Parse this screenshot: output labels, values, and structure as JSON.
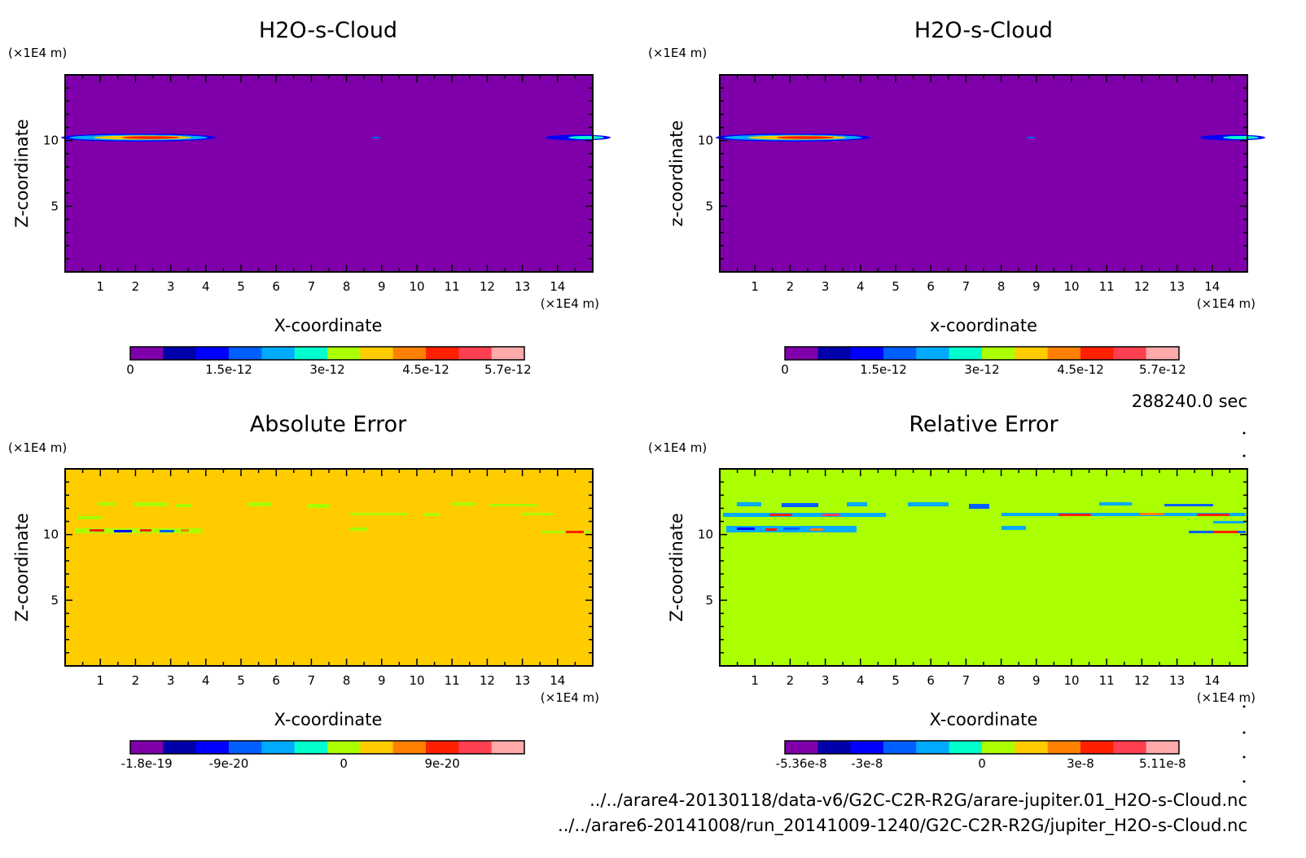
{
  "time_label": "288240.0 sec",
  "files": [
    "../../arare4-20130118/data-v6/G2C-C2R-R2G/arare-jupiter.01_H2O-s-Cloud.nc",
    "../../arare6-20141008/run_20141009-1240/G2C-C2R-R2G/jupiter_H2O-s-Cloud.nc"
  ],
  "chart_data": [
    {
      "type": "heatmap",
      "title": "H2O-s-Cloud",
      "xlabel": "X-coordinate",
      "ylabel": "Z-coordinate",
      "x_unit": "(×1E4 m)",
      "z_unit": "(×1E4 m)",
      "xlim": [
        0,
        15
      ],
      "zlim": [
        0,
        15
      ],
      "x_ticks": [
        "1",
        "2",
        "3",
        "4",
        "5",
        "6",
        "7",
        "8",
        "9",
        "10",
        "11",
        "12",
        "13",
        "14"
      ],
      "z_ticks": [
        "5",
        "10"
      ],
      "background_color": "#7f00aa",
      "colorbar": {
        "colors": [
          "#7f00aa",
          "#0000aa",
          "#0000ff",
          "#0060ff",
          "#00aaff",
          "#00ffcc",
          "#aaff00",
          "#ffcc00",
          "#ff8000",
          "#ff2000",
          "#ff4050",
          "#ffaaaa"
        ],
        "tick_labels": [
          "0",
          "1.5e-12",
          "3e-12",
          "4.5e-12",
          "5.7e-12"
        ]
      },
      "features": [
        {
          "x": [
            0.0,
            4.0
          ],
          "z": 10.0,
          "peak": "4.5e-12"
        },
        {
          "x": [
            8.8,
            9.0
          ],
          "z": 10.0,
          "peak": "1.5e-12"
        },
        {
          "x": [
            14.0,
            15.0
          ],
          "z": 10.0,
          "peak": "3e-12"
        }
      ]
    },
    {
      "type": "heatmap",
      "title": "H2O-s-Cloud",
      "xlabel": "x-coordinate",
      "ylabel": "z-coordinate",
      "x_unit": "(×1E4 m)",
      "z_unit": "(×1E4 m)",
      "xlim": [
        0,
        15
      ],
      "zlim": [
        0,
        15
      ],
      "x_ticks": [
        "1",
        "2",
        "3",
        "4",
        "5",
        "6",
        "7",
        "8",
        "9",
        "10",
        "11",
        "12",
        "13",
        "14"
      ],
      "z_ticks": [
        "5",
        "10"
      ],
      "background_color": "#7f00aa",
      "colorbar": {
        "colors": [
          "#7f00aa",
          "#0000aa",
          "#0000ff",
          "#0060ff",
          "#00aaff",
          "#00ffcc",
          "#aaff00",
          "#ffcc00",
          "#ff8000",
          "#ff2000",
          "#ff4050",
          "#ffaaaa"
        ],
        "tick_labels": [
          "0",
          "1.5e-12",
          "3e-12",
          "4.5e-12",
          "5.7e-12"
        ]
      },
      "features": [
        {
          "x": [
            0.0,
            4.0
          ],
          "z": 10.0,
          "peak": "4.5e-12"
        },
        {
          "x": [
            8.8,
            9.0
          ],
          "z": 10.0,
          "peak": "1.5e-12"
        },
        {
          "x": [
            14.0,
            15.0
          ],
          "z": 10.0,
          "peak": "3e-12"
        }
      ]
    },
    {
      "type": "heatmap",
      "title": "Absolute Error",
      "xlabel": "X-coordinate",
      "ylabel": "Z-coordinate",
      "x_unit": "(×1E4 m)",
      "z_unit": "(×1E4 m)",
      "xlim": [
        0,
        15
      ],
      "zlim": [
        0,
        15
      ],
      "x_ticks": [
        "1",
        "2",
        "3",
        "4",
        "5",
        "6",
        "7",
        "8",
        "9",
        "10",
        "11",
        "12",
        "13",
        "14"
      ],
      "z_ticks": [
        "5",
        "10"
      ],
      "background_color": "#ffcc00",
      "colorbar": {
        "colors": [
          "#7f00aa",
          "#0000aa",
          "#0000ff",
          "#0060ff",
          "#00aaff",
          "#00ffcc",
          "#aaff00",
          "#ffcc00",
          "#ff8000",
          "#ff2000",
          "#ff4050",
          "#ffaaaa"
        ],
        "tick_labels": [
          "-1.8e-19",
          "-9e-20",
          "0",
          "9e-20"
        ]
      },
      "features": [
        {
          "x": [
            0.2,
            3.8
          ],
          "z": 10.0,
          "kind": "mixed noise band"
        },
        {
          "x": [
            0.5,
            14.5
          ],
          "z": 12.0,
          "kind": "sparse green patches"
        }
      ]
    },
    {
      "type": "heatmap",
      "title": "Relative Error",
      "xlabel": "X-coordinate",
      "ylabel": "Z-coordinate",
      "x_unit": "(×1E4 m)",
      "z_unit": "(×1E4 m)",
      "xlim": [
        0,
        15
      ],
      "zlim": [
        0,
        15
      ],
      "x_ticks": [
        "1",
        "2",
        "3",
        "4",
        "5",
        "6",
        "7",
        "8",
        "9",
        "10",
        "11",
        "12",
        "13",
        "14"
      ],
      "z_ticks": [
        "5",
        "10"
      ],
      "background_color": "#aaff00",
      "colorbar": {
        "colors": [
          "#7f00aa",
          "#0000aa",
          "#0000ff",
          "#0060ff",
          "#00aaff",
          "#00ffcc",
          "#aaff00",
          "#ffcc00",
          "#ff8000",
          "#ff2000",
          "#ff4050",
          "#ffaaaa"
        ],
        "tick_labels": [
          "-5.36e-8",
          "-3e-8",
          "0",
          "3e-8",
          "5.11e-8"
        ]
      },
      "features": [
        {
          "x": [
            0.0,
            15.0
          ],
          "z": [
            10.0,
            12.5
          ],
          "kind": "blue/red noise bands"
        }
      ]
    }
  ]
}
